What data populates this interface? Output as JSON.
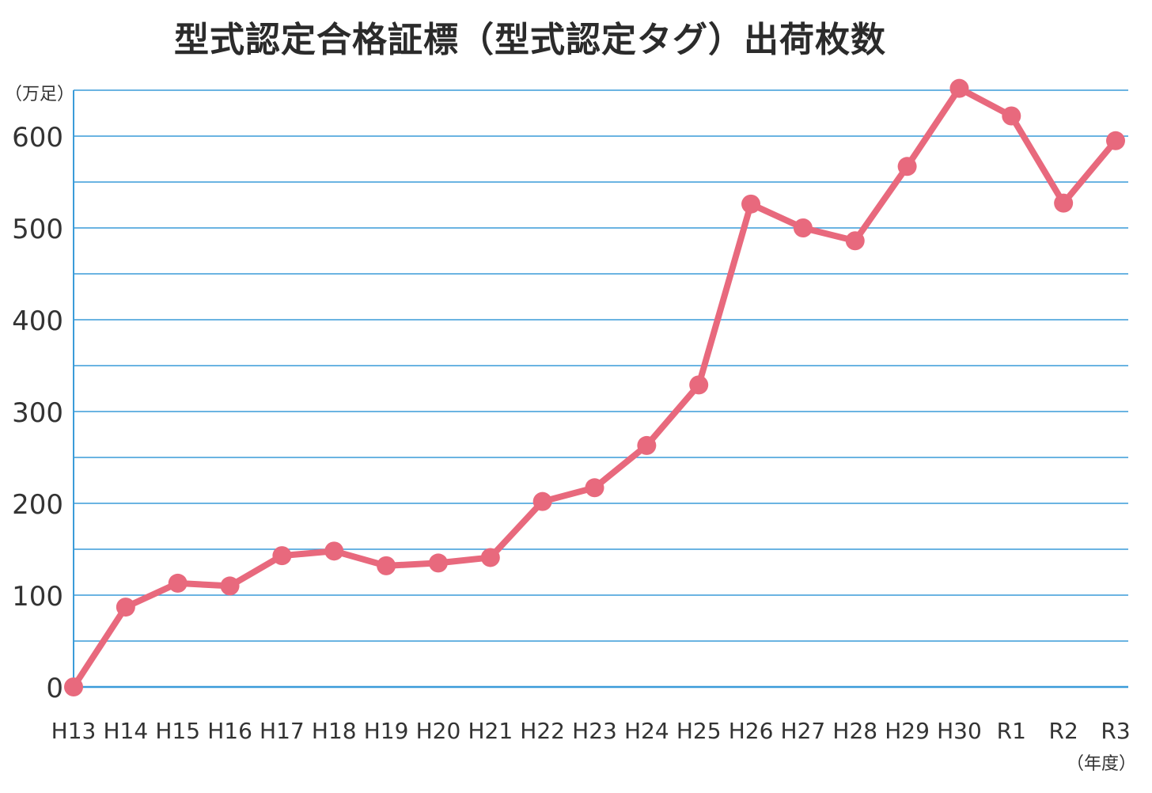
{
  "chart_data": {
    "type": "line",
    "title": "型式認定合格証標（型式認定タグ）出荷枚数",
    "ylabel": "（万足）",
    "xlabel": "（年度）",
    "ylim": [
      0,
      650
    ],
    "yticks": [
      0,
      100,
      200,
      300,
      400,
      500,
      600
    ],
    "grid": true,
    "categories": [
      "H13",
      "H14",
      "H15",
      "H16",
      "H17",
      "H18",
      "H19",
      "H20",
      "H21",
      "H22",
      "H23",
      "H24",
      "H25",
      "H26",
      "H27",
      "H28",
      "H29",
      "H30",
      "R1",
      "R2",
      "R3"
    ],
    "series": [
      {
        "values": [
          0,
          87,
          113,
          110,
          143,
          148,
          132,
          135,
          141,
          202,
          217,
          263,
          329,
          526,
          500,
          486,
          567,
          652,
          622,
          527,
          595
        ]
      }
    ]
  },
  "colors": {
    "line": "#e8697d",
    "grid": "#3a9bd9",
    "axis": "#3a9bd9"
  }
}
